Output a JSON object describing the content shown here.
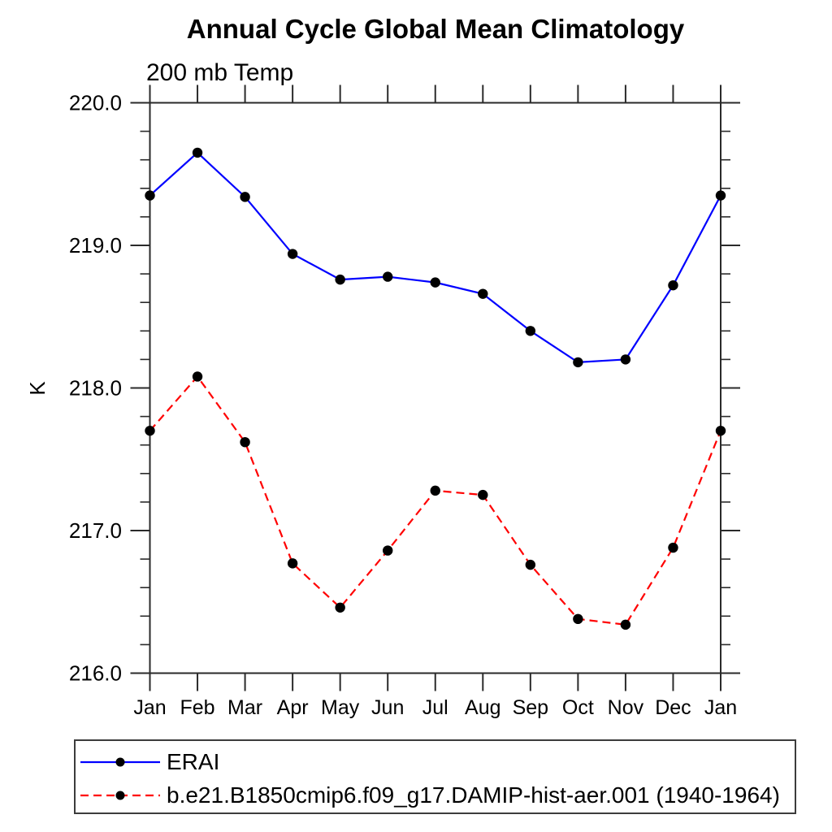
{
  "chart_data": {
    "type": "line",
    "title": "Annual Cycle Global Mean Climatology",
    "subtitle": "200 mb Temp",
    "ylabel": "K",
    "xlabel": "",
    "categories": [
      "Jan",
      "Feb",
      "Mar",
      "Apr",
      "May",
      "Jun",
      "Jul",
      "Aug",
      "Sep",
      "Oct",
      "Nov",
      "Dec",
      "Jan"
    ],
    "series": [
      {
        "name": "ERAI",
        "color": "#0000ff",
        "line_style": "solid",
        "marker": "filled-circle",
        "marker_color": "#000000",
        "values": [
          219.35,
          219.65,
          219.34,
          218.94,
          218.76,
          218.78,
          218.74,
          218.66,
          218.4,
          218.18,
          218.2,
          218.72,
          219.35
        ]
      },
      {
        "name": "b.e21.B1850cmip6.f09_g17.DAMIP-hist-aer.001 (1940-1964)",
        "color": "#ff0000",
        "line_style": "dashed",
        "marker": "filled-circle",
        "marker_color": "#000000",
        "values": [
          217.7,
          218.08,
          217.62,
          216.77,
          216.46,
          216.86,
          217.28,
          217.25,
          216.76,
          216.38,
          216.34,
          216.88,
          217.7
        ]
      }
    ],
    "ylim": [
      216.0,
      220.0
    ],
    "yticks": [
      220.0,
      219.0,
      218.0,
      217.0,
      216.0
    ],
    "ytick_labels": [
      "220.0",
      "219.0",
      "218.0",
      "217.0",
      "216.0"
    ],
    "y_minor_step": 0.2,
    "grid": false,
    "legend_position": "bottom-left-box",
    "axis_color": "#2a2a2a"
  }
}
